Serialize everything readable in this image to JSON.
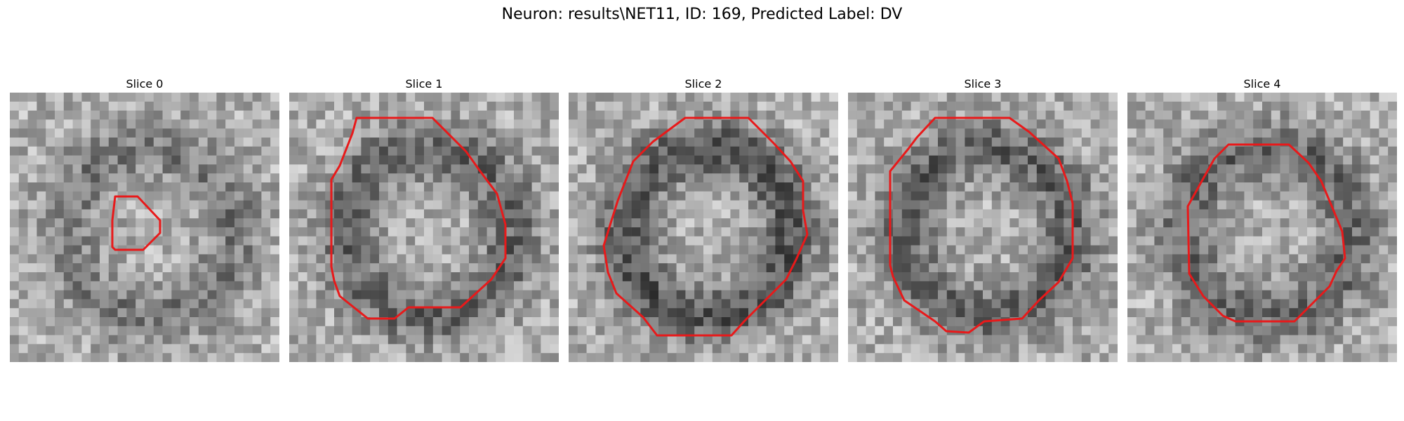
{
  "figure": {
    "title": "Neuron: results\\NET11, ID: 169, Predicted Label: DV"
  },
  "panels": [
    {
      "label": "Slice 0"
    },
    {
      "label": "Slice 1"
    },
    {
      "label": "Slice 2"
    },
    {
      "label": "Slice 3"
    },
    {
      "label": "Slice 4"
    }
  ],
  "colors": {
    "contour": "#e8191a",
    "background": "#ffffff"
  }
}
